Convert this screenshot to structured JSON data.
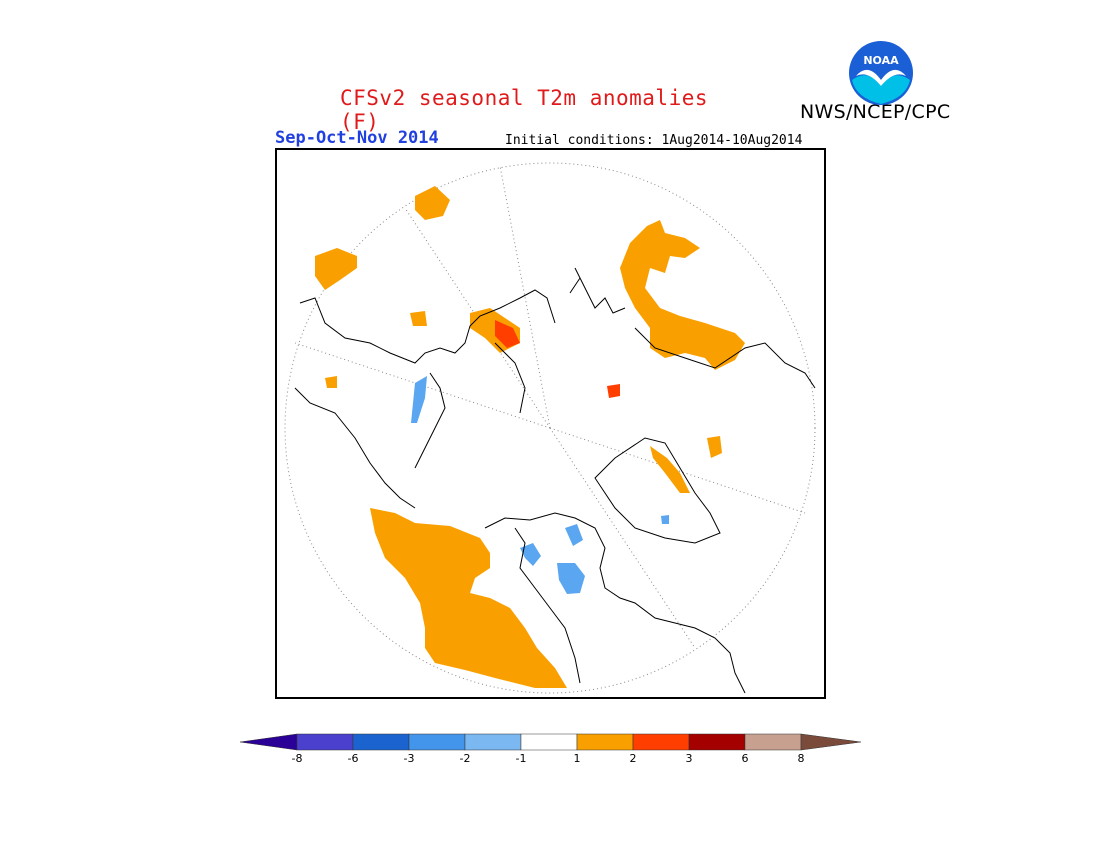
{
  "header": {
    "title": "CFSv2 seasonal T2m anomalies (F)",
    "agency": "NWS/NCEP/CPC",
    "season": "Sep-Oct-Nov 2014",
    "initial_conditions": "Initial conditions: 1Aug2014-10Aug2014"
  },
  "logo": {
    "text": "NOAA",
    "colors": {
      "sky": "#1a5fd6",
      "sea": "#00c0e8",
      "gull": "#ffffff"
    }
  },
  "map": {
    "projection": "north polar stereographic",
    "positive_color_1_2": "#f9a000",
    "positive_color_2_3": "#ff3e00",
    "negative_color_-2_-1": "#7ab8f4",
    "negative_color_-3_-2": "#4aa0ee"
  },
  "colorbar": {
    "labels": [
      "-8",
      "-6",
      "-3",
      "-2",
      "-1",
      "1",
      "2",
      "3",
      "6",
      "8"
    ],
    "colors": [
      "#2a0096",
      "#4b3fcd",
      "#1b64d0",
      "#4295ea",
      "#7bb8f2",
      "#ffffff",
      "#f9a000",
      "#ff3e00",
      "#a40000",
      "#c8a090",
      "#7a4a3a"
    ]
  }
}
